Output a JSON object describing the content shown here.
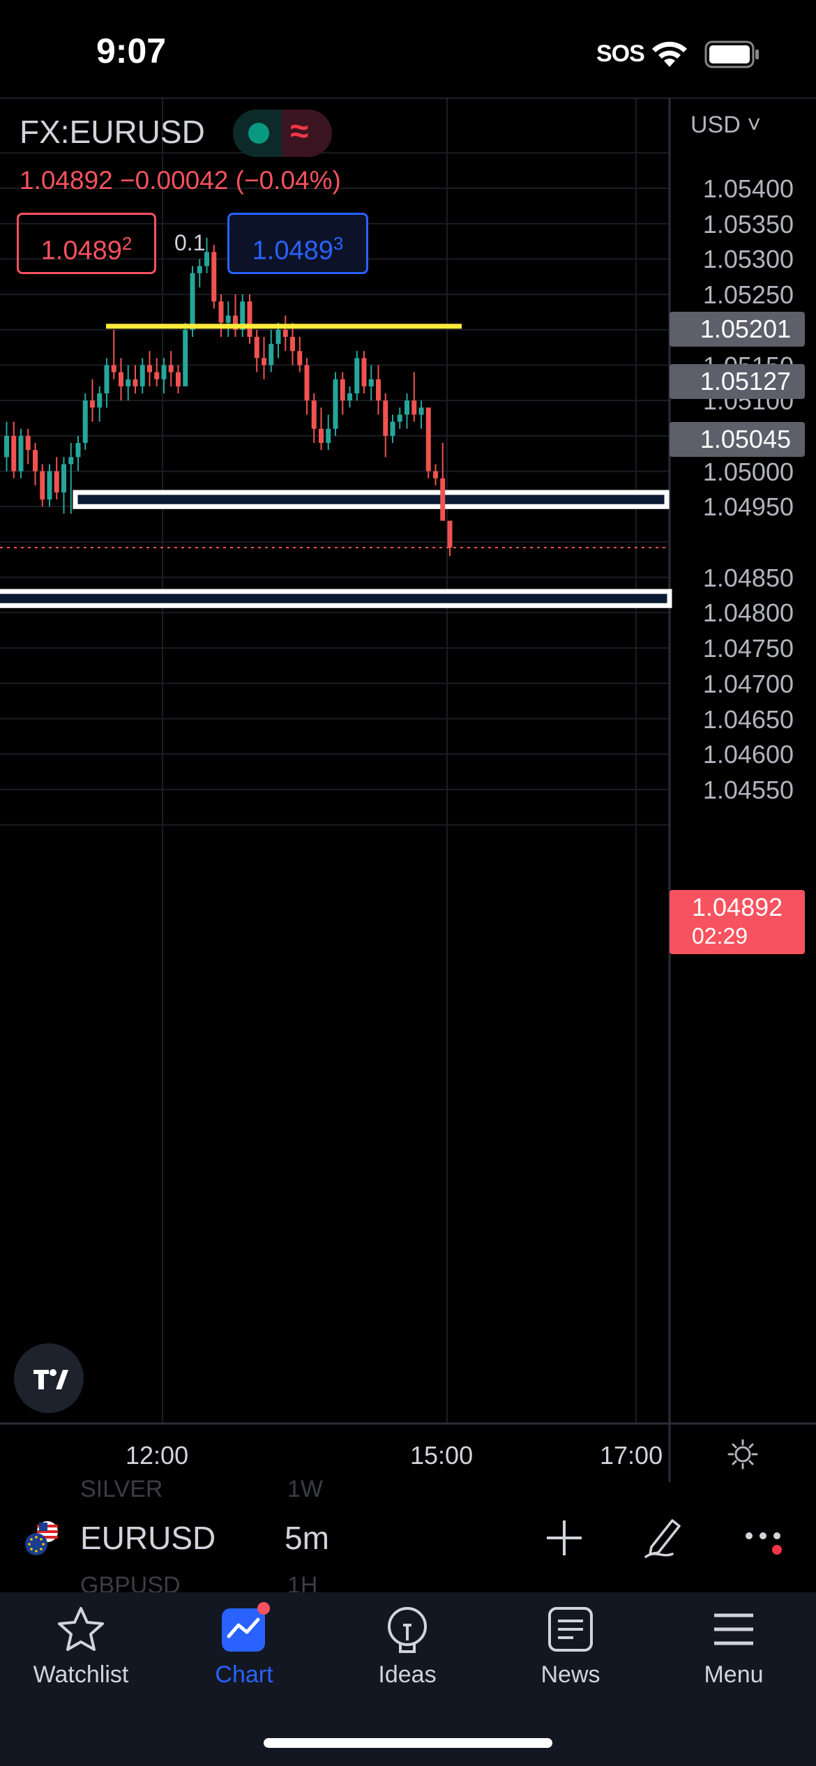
{
  "status_bar": {
    "time": "9:07",
    "sos": "SOS"
  },
  "header": {
    "symbol": "FX:EURUSD",
    "price_line": "1.04892  −0.00042 (−0.04%)",
    "sell_price_main": "1.0489",
    "sell_price_sup": "2",
    "spread": "0.1",
    "buy_price_main": "1.0489",
    "buy_price_sup": "3"
  },
  "axis": {
    "currency": "USD ˅",
    "labels": [
      "1.05400",
      "1.05350",
      "1.05300",
      "1.05250",
      "1.05150",
      "1.05100",
      "1.05000",
      "1.04950",
      "1.04850",
      "1.04800",
      "1.04750",
      "1.04700",
      "1.04650",
      "1.04600",
      "1.04550"
    ],
    "tags": [
      "1.05201",
      "1.05127",
      "1.05045"
    ],
    "last_price": "1.04892",
    "countdown": "02:29"
  },
  "time_axis": {
    "labels": [
      "12:00",
      "15:00",
      "17:00"
    ]
  },
  "symbol_bar": {
    "symbol": "EURUSD",
    "interval": "5m",
    "ghost_above_symbol": "SILVER",
    "ghost_above_interval": "1W",
    "ghost_below_symbol": "GBPUSD",
    "ghost_below_interval": "1H"
  },
  "tabs": [
    {
      "label": "Watchlist",
      "icon": "star-icon"
    },
    {
      "label": "Chart",
      "icon": "chart-icon",
      "active": true
    },
    {
      "label": "Ideas",
      "icon": "lightbulb-icon"
    },
    {
      "label": "News",
      "icon": "newspaper-icon"
    },
    {
      "label": "Menu",
      "icon": "hamburger-icon"
    }
  ],
  "colors": {
    "up": "#26a69a",
    "down": "#ef5350",
    "accent": "#2962ff",
    "background": "#000000",
    "resistance_line": "#ffeb3b"
  },
  "chart_data": {
    "type": "candlestick",
    "symbol": "FX:EURUSD",
    "interval": "5m",
    "ylim": [
      1.0452,
      1.0545
    ],
    "candles": [
      {
        "o": 1.0502,
        "h": 1.0507,
        "l": 1.05,
        "c": 1.0505
      },
      {
        "o": 1.0505,
        "h": 1.0507,
        "l": 1.0499,
        "c": 1.05
      },
      {
        "o": 1.05,
        "h": 1.0506,
        "l": 1.0499,
        "c": 1.0505
      },
      {
        "o": 1.0505,
        "h": 1.0506,
        "l": 1.0501,
        "c": 1.0503
      },
      {
        "o": 1.0503,
        "h": 1.0504,
        "l": 1.0498,
        "c": 1.05
      },
      {
        "o": 1.05,
        "h": 1.0501,
        "l": 1.0495,
        "c": 1.0496
      },
      {
        "o": 1.0496,
        "h": 1.0501,
        "l": 1.0495,
        "c": 1.05
      },
      {
        "o": 1.05,
        "h": 1.0502,
        "l": 1.0496,
        "c": 1.0497
      },
      {
        "o": 1.0497,
        "h": 1.0502,
        "l": 1.0494,
        "c": 1.0501
      },
      {
        "o": 1.0501,
        "h": 1.0504,
        "l": 1.0494,
        "c": 1.0502
      },
      {
        "o": 1.0502,
        "h": 1.0505,
        "l": 1.05,
        "c": 1.0504
      },
      {
        "o": 1.0504,
        "h": 1.0511,
        "l": 1.0503,
        "c": 1.051
      },
      {
        "o": 1.051,
        "h": 1.0513,
        "l": 1.0507,
        "c": 1.0509
      },
      {
        "o": 1.0509,
        "h": 1.0512,
        "l": 1.0507,
        "c": 1.0511
      },
      {
        "o": 1.0511,
        "h": 1.0516,
        "l": 1.0509,
        "c": 1.0515
      },
      {
        "o": 1.0515,
        "h": 1.052,
        "l": 1.0513,
        "c": 1.0514
      },
      {
        "o": 1.0514,
        "h": 1.0516,
        "l": 1.051,
        "c": 1.0512
      },
      {
        "o": 1.0512,
        "h": 1.0515,
        "l": 1.051,
        "c": 1.0513
      },
      {
        "o": 1.0513,
        "h": 1.0515,
        "l": 1.0511,
        "c": 1.0512
      },
      {
        "o": 1.0512,
        "h": 1.0516,
        "l": 1.0511,
        "c": 1.0515
      },
      {
        "o": 1.0515,
        "h": 1.0517,
        "l": 1.0512,
        "c": 1.0514
      },
      {
        "o": 1.0514,
        "h": 1.0516,
        "l": 1.0512,
        "c": 1.0513
      },
      {
        "o": 1.0513,
        "h": 1.0516,
        "l": 1.0511,
        "c": 1.0515
      },
      {
        "o": 1.0515,
        "h": 1.0517,
        "l": 1.0512,
        "c": 1.0514
      },
      {
        "o": 1.0514,
        "h": 1.0515,
        "l": 1.0511,
        "c": 1.0512
      },
      {
        "o": 1.0512,
        "h": 1.0521,
        "l": 1.0512,
        "c": 1.052
      },
      {
        "o": 1.052,
        "h": 1.0529,
        "l": 1.0519,
        "c": 1.0528
      },
      {
        "o": 1.0528,
        "h": 1.053,
        "l": 1.0526,
        "c": 1.0529
      },
      {
        "o": 1.0529,
        "h": 1.0533,
        "l": 1.0528,
        "c": 1.0531
      },
      {
        "o": 1.0531,
        "h": 1.0532,
        "l": 1.0523,
        "c": 1.0524
      },
      {
        "o": 1.0524,
        "h": 1.0525,
        "l": 1.0519,
        "c": 1.0521
      },
      {
        "o": 1.0521,
        "h": 1.0524,
        "l": 1.0519,
        "c": 1.0522
      },
      {
        "o": 1.0522,
        "h": 1.0525,
        "l": 1.0519,
        "c": 1.052
      },
      {
        "o": 1.052,
        "h": 1.0525,
        "l": 1.0519,
        "c": 1.0524
      },
      {
        "o": 1.0524,
        "h": 1.0525,
        "l": 1.0518,
        "c": 1.0519
      },
      {
        "o": 1.0519,
        "h": 1.052,
        "l": 1.0514,
        "c": 1.0516
      },
      {
        "o": 1.0516,
        "h": 1.0519,
        "l": 1.0513,
        "c": 1.0515
      },
      {
        "o": 1.0515,
        "h": 1.052,
        "l": 1.0514,
        "c": 1.0518
      },
      {
        "o": 1.0518,
        "h": 1.0521,
        "l": 1.0516,
        "c": 1.052
      },
      {
        "o": 1.052,
        "h": 1.0522,
        "l": 1.0517,
        "c": 1.0519
      },
      {
        "o": 1.0519,
        "h": 1.0521,
        "l": 1.0515,
        "c": 1.0517
      },
      {
        "o": 1.0517,
        "h": 1.0519,
        "l": 1.0514,
        "c": 1.0515
      },
      {
        "o": 1.0515,
        "h": 1.0516,
        "l": 1.0508,
        "c": 1.051
      },
      {
        "o": 1.051,
        "h": 1.0511,
        "l": 1.0504,
        "c": 1.0506
      },
      {
        "o": 1.0506,
        "h": 1.0509,
        "l": 1.0503,
        "c": 1.0504
      },
      {
        "o": 1.0504,
        "h": 1.0508,
        "l": 1.0503,
        "c": 1.0506
      },
      {
        "o": 1.0506,
        "h": 1.0514,
        "l": 1.0505,
        "c": 1.0513
      },
      {
        "o": 1.0513,
        "h": 1.0514,
        "l": 1.0508,
        "c": 1.051
      },
      {
        "o": 1.051,
        "h": 1.0512,
        "l": 1.0509,
        "c": 1.0511
      },
      {
        "o": 1.0511,
        "h": 1.0517,
        "l": 1.051,
        "c": 1.0516
      },
      {
        "o": 1.0516,
        "h": 1.0517,
        "l": 1.0511,
        "c": 1.0512
      },
      {
        "o": 1.0512,
        "h": 1.0515,
        "l": 1.051,
        "c": 1.0513
      },
      {
        "o": 1.0513,
        "h": 1.0515,
        "l": 1.0508,
        "c": 1.051
      },
      {
        "o": 1.051,
        "h": 1.0511,
        "l": 1.0502,
        "c": 1.0505
      },
      {
        "o": 1.0505,
        "h": 1.0508,
        "l": 1.0504,
        "c": 1.0507
      },
      {
        "o": 1.0507,
        "h": 1.0509,
        "l": 1.0506,
        "c": 1.0508
      },
      {
        "o": 1.0508,
        "h": 1.0511,
        "l": 1.0506,
        "c": 1.051
      },
      {
        "o": 1.051,
        "h": 1.0514,
        "l": 1.0507,
        "c": 1.0508
      },
      {
        "o": 1.0508,
        "h": 1.051,
        "l": 1.0506,
        "c": 1.0509
      },
      {
        "o": 1.0509,
        "h": 1.0509,
        "l": 1.0499,
        "c": 1.05
      },
      {
        "o": 1.05,
        "h": 1.0501,
        "l": 1.0498,
        "c": 1.0499
      },
      {
        "o": 1.0499,
        "h": 1.0504,
        "l": 1.0493,
        "c": 1.0493
      },
      {
        "o": 1.0493,
        "h": 1.0493,
        "l": 1.0488,
        "c": 1.04892
      }
    ],
    "zones": [
      {
        "top": 1.0497,
        "bottom": 1.0495
      },
      {
        "top": 1.0483,
        "bottom": 1.0481
      }
    ],
    "resistance_line": 1.05205,
    "time_labels": [
      "12:00",
      "15:00",
      "17:00"
    ]
  }
}
